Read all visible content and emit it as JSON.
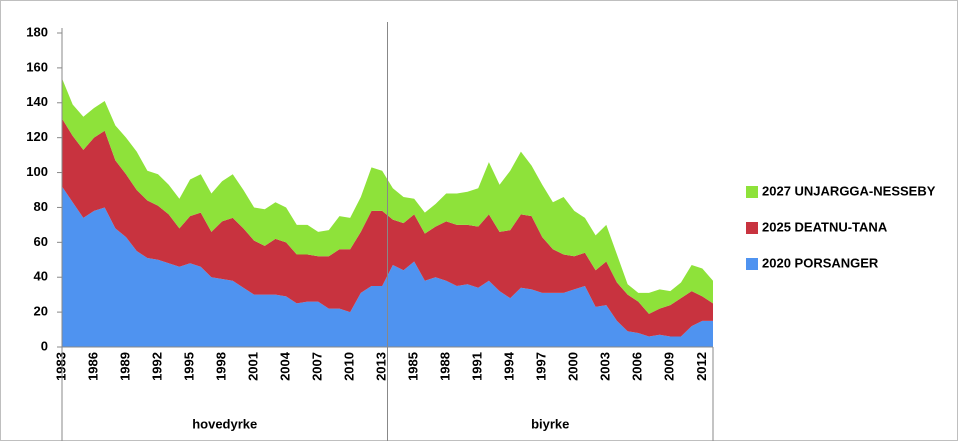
{
  "chart_data": {
    "type": "stacked_area",
    "categories": [
      "1983",
      null,
      null,
      "1986",
      null,
      null,
      "1989",
      null,
      null,
      "1992",
      null,
      null,
      "1995",
      null,
      null,
      "1998",
      null,
      null,
      "2001",
      null,
      null,
      "2004",
      null,
      null,
      "2007",
      null,
      null,
      "2010",
      null,
      null,
      "2013",
      null,
      null,
      "1985",
      null,
      null,
      "1988",
      null,
      null,
      "1991",
      null,
      null,
      "1994",
      null,
      null,
      "1997",
      null,
      null,
      "2000",
      null,
      null,
      "2003",
      null,
      null,
      "2006",
      null,
      null,
      "2009",
      null,
      null,
      "2012",
      null
    ],
    "group_labels": [
      "hovedyrke",
      "biyrke"
    ],
    "series": [
      {
        "name": "2020 PORSANGER",
        "color": "#4f93f0",
        "values": [
          92,
          83,
          74,
          78,
          80,
          68,
          63,
          55,
          51,
          50,
          48,
          46,
          48,
          46,
          40,
          39,
          38,
          34,
          30,
          30,
          30,
          29,
          25,
          26,
          26,
          22,
          22,
          20,
          31,
          35,
          35,
          47,
          44,
          49,
          38,
          40,
          38,
          35,
          36,
          34,
          38,
          32,
          28,
          34,
          33,
          31,
          31,
          31,
          33,
          35,
          23,
          24,
          15,
          9,
          8,
          6,
          7,
          6,
          6,
          12,
          15,
          15
        ]
      },
      {
        "name": "2025 DEATNU-TANA",
        "color": "#c8333f",
        "values": [
          39,
          38,
          39,
          42,
          44,
          39,
          36,
          35,
          33,
          31,
          28,
          22,
          27,
          31,
          26,
          33,
          36,
          34,
          31,
          28,
          32,
          31,
          28,
          27,
          26,
          30,
          34,
          36,
          35,
          43,
          43,
          26,
          27,
          27,
          27,
          29,
          34,
          35,
          34,
          35,
          38,
          34,
          39,
          42,
          42,
          32,
          25,
          22,
          19,
          19,
          21,
          25,
          22,
          21,
          18,
          13,
          15,
          18,
          22,
          20,
          14,
          10
        ]
      },
      {
        "name": "2027 UNJARGGA-NESSEBY",
        "color": "#8ee23a",
        "values": [
          23,
          18,
          19,
          17,
          17,
          20,
          21,
          22,
          17,
          18,
          17,
          17,
          21,
          22,
          22,
          23,
          25,
          22,
          19,
          21,
          21,
          20,
          17,
          17,
          14,
          15,
          19,
          18,
          20,
          25,
          23,
          18,
          15,
          9,
          12,
          13,
          16,
          18,
          19,
          22,
          30,
          27,
          34,
          36,
          29,
          30,
          27,
          33,
          26,
          20,
          20,
          21,
          16,
          6,
          5,
          12,
          11,
          8,
          9,
          15,
          16,
          13
        ]
      }
    ],
    "ylim": [
      0,
      180
    ],
    "yticks": [
      0,
      20,
      40,
      60,
      80,
      100,
      120,
      140,
      160,
      180
    ],
    "legend": "right"
  }
}
